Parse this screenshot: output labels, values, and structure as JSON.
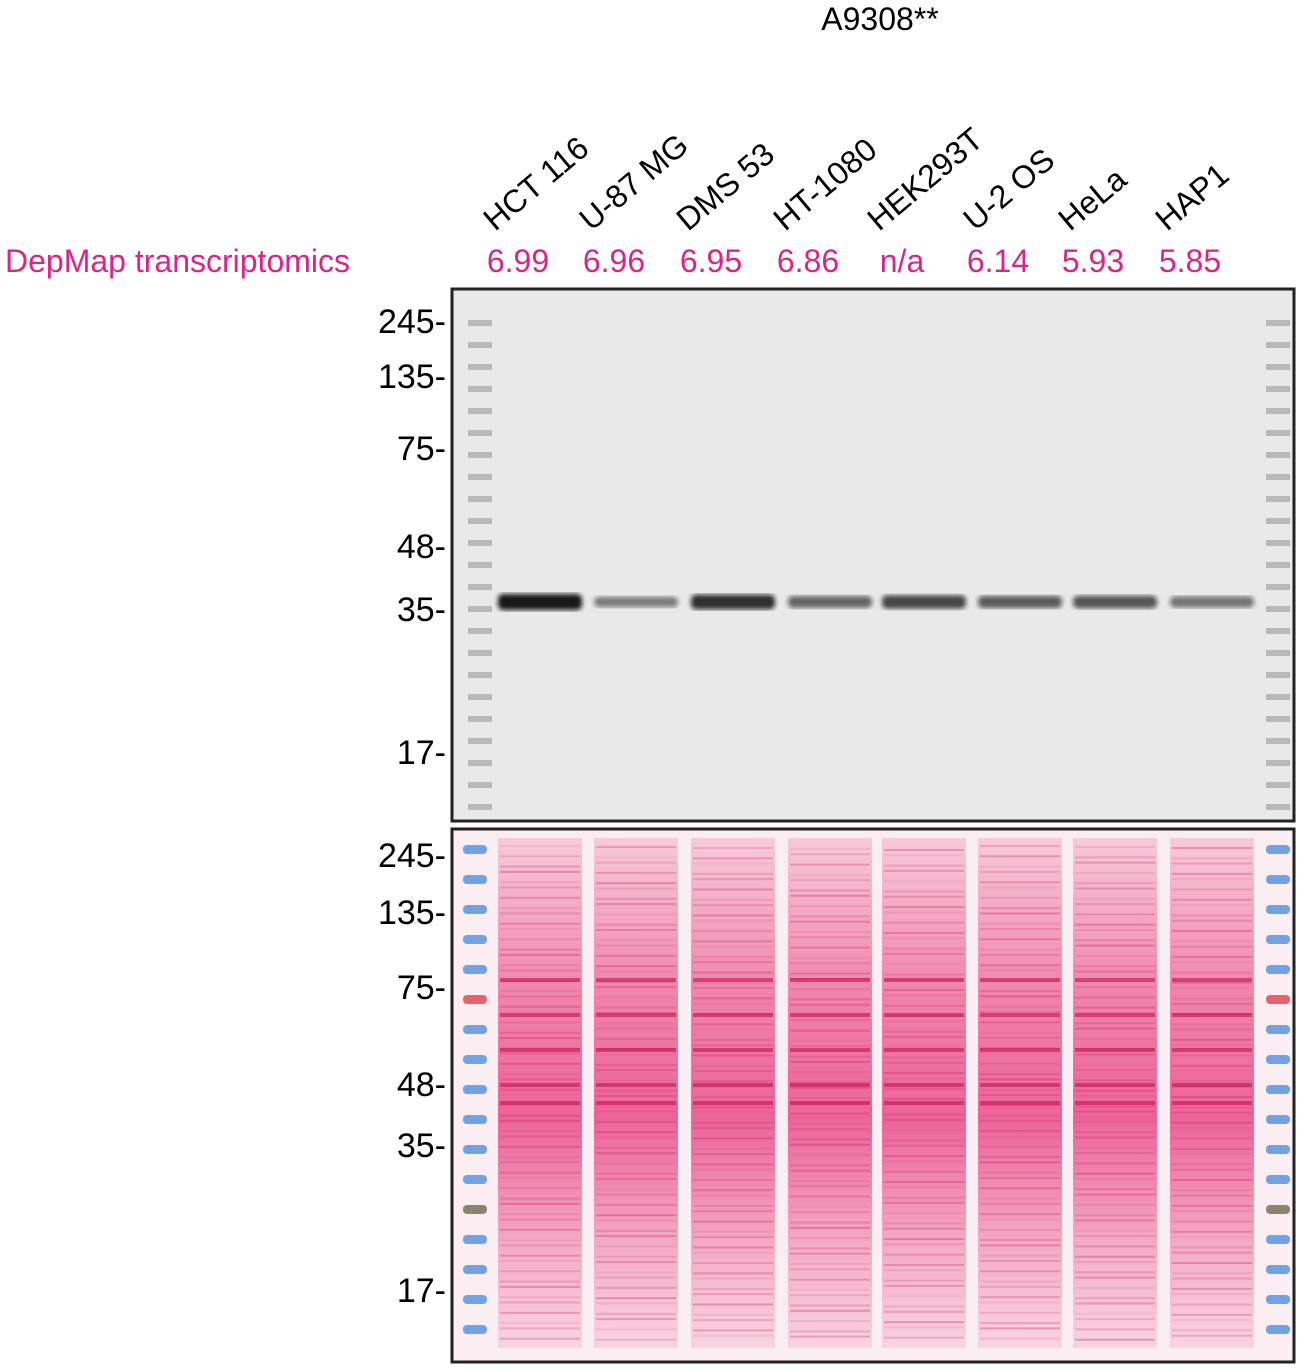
{
  "header": {
    "title": "A9308**"
  },
  "lanes": [
    "HCT 116",
    "U-87 MG",
    "DMS 53",
    "HT-1080",
    "HEK293T",
    "U-2 OS",
    "HeLa",
    "HAP1"
  ],
  "depmap": {
    "label": "DepMap transcriptomics",
    "values": [
      "6.99",
      "6.96",
      "6.95",
      "6.86",
      "n/a",
      "6.14",
      "5.93",
      "5.85"
    ]
  },
  "western_blot": {
    "markers": [
      "245-",
      "135-",
      "75-",
      "48-",
      "35-",
      "17-"
    ]
  },
  "ponceau": {
    "markers": [
      "245-",
      "135-",
      "75-",
      "48-",
      "35-",
      "17-"
    ]
  }
}
